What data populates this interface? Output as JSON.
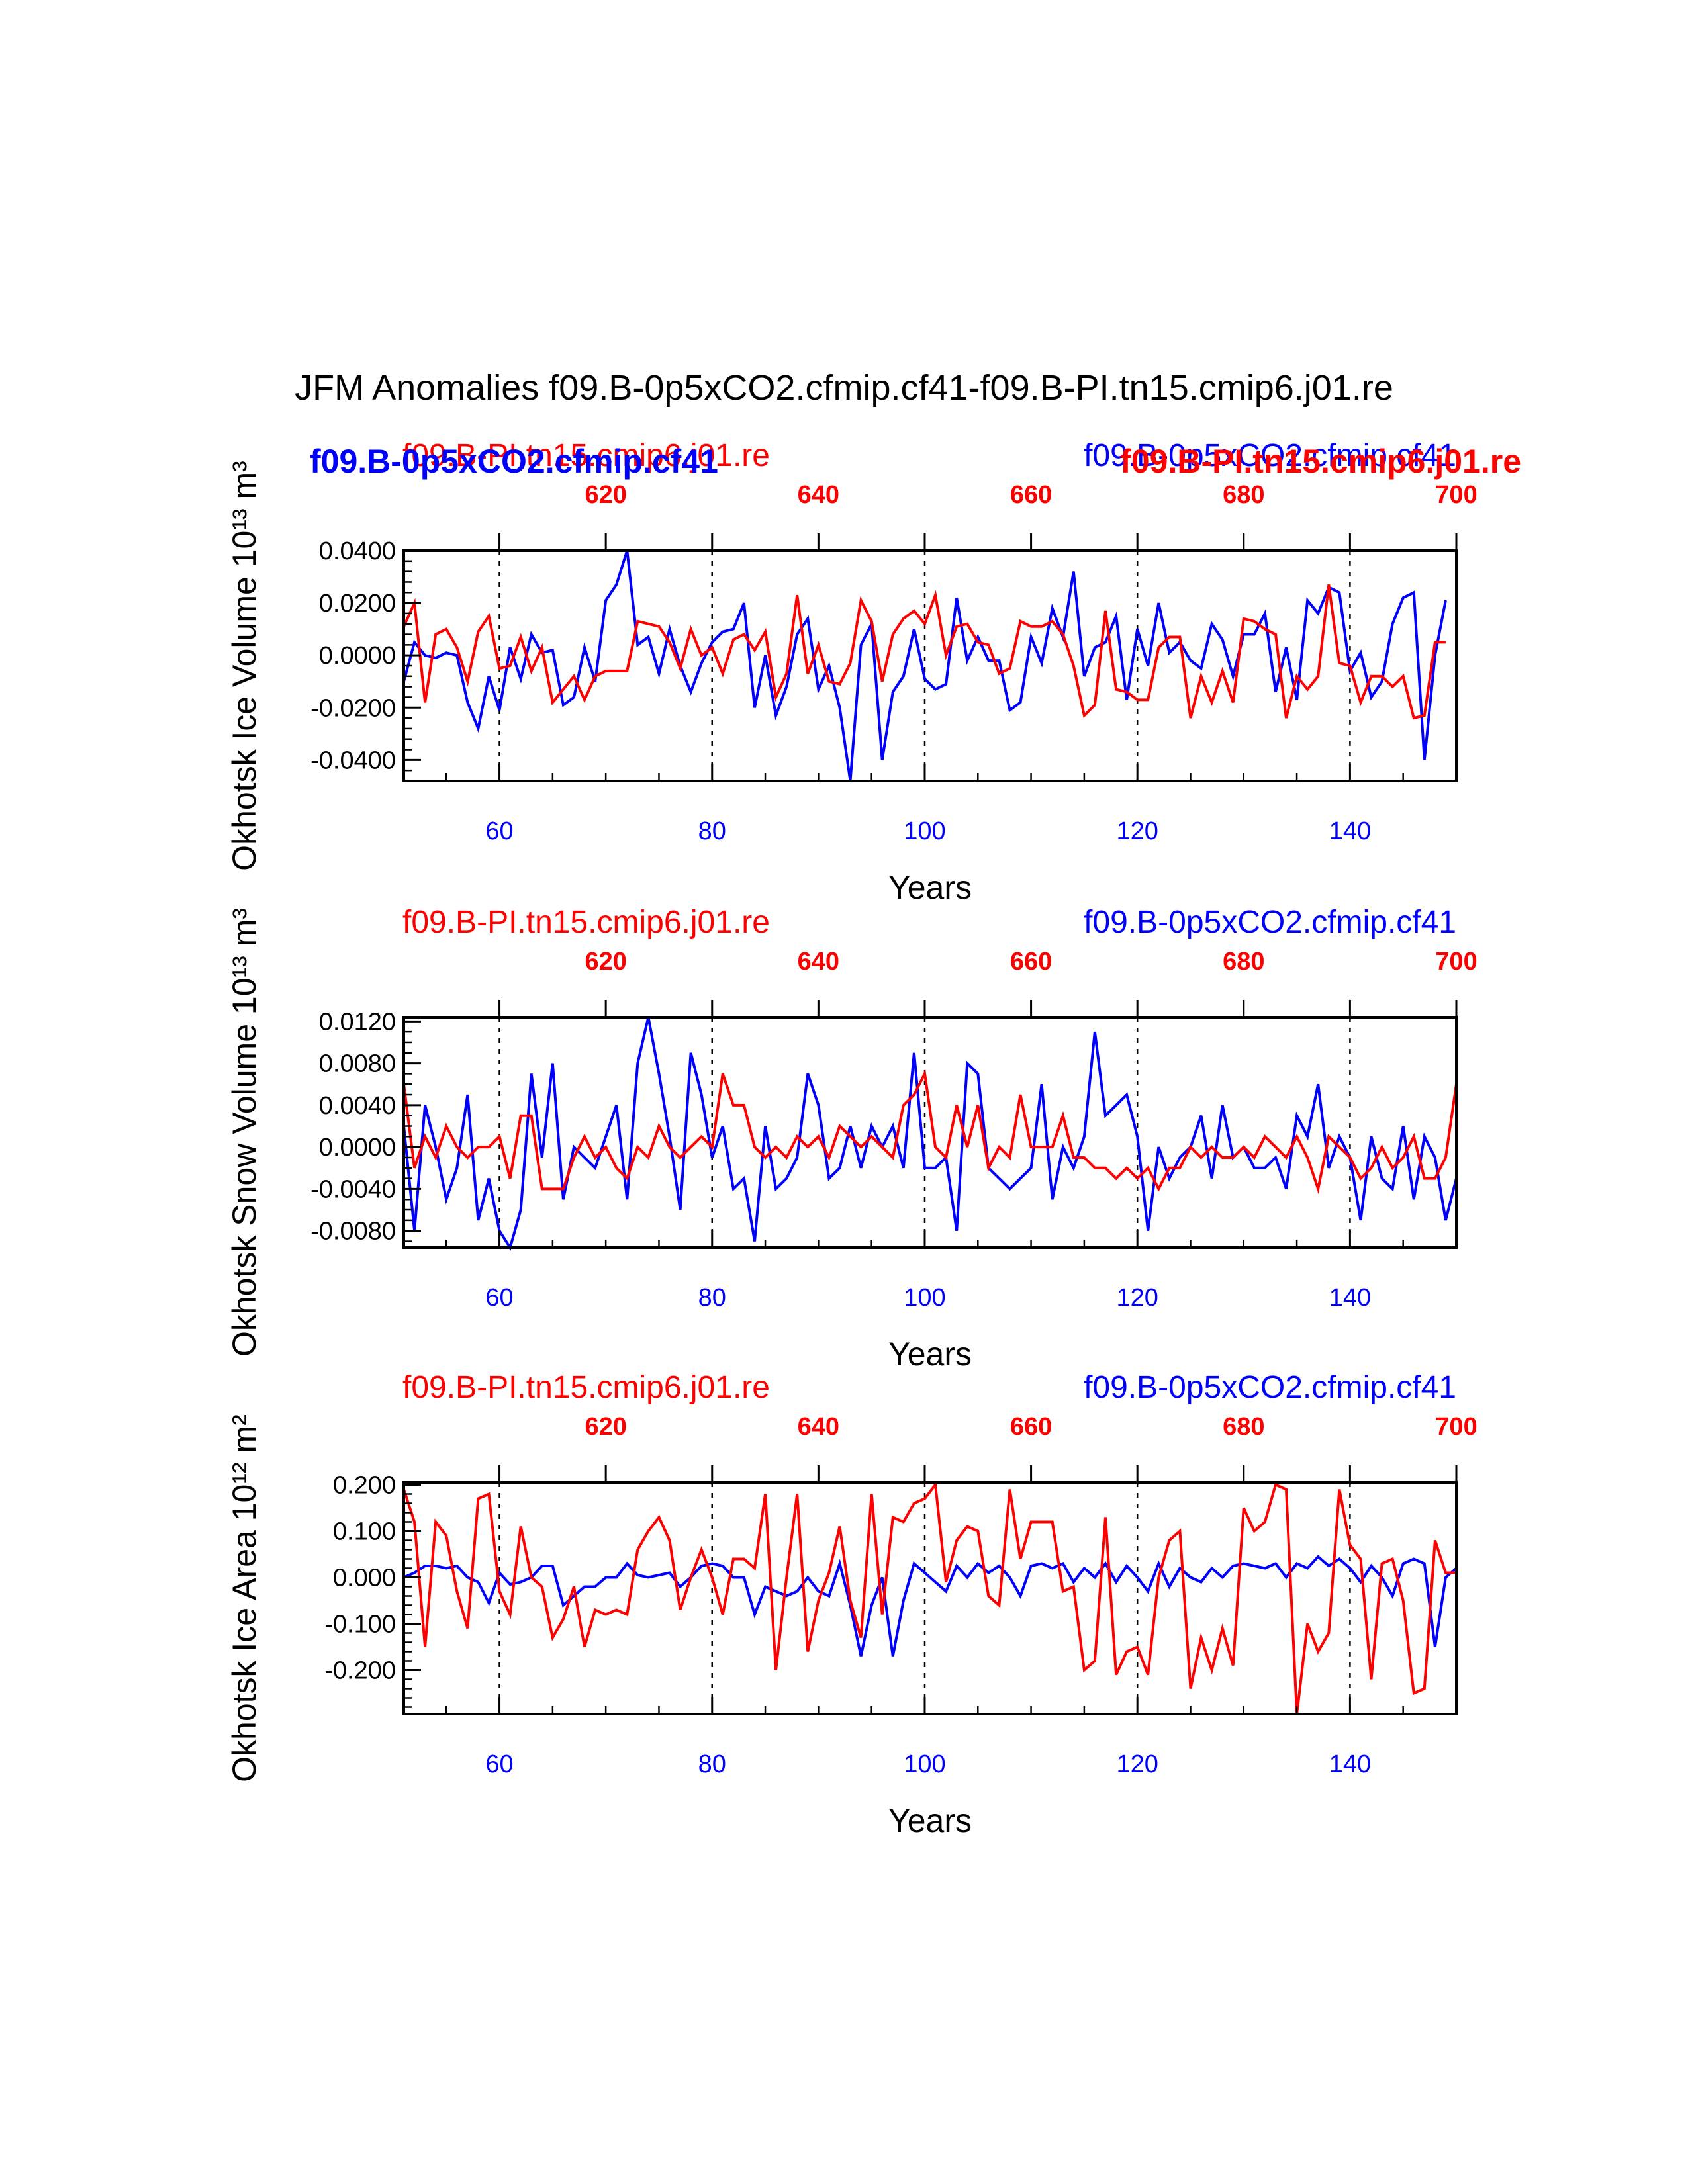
{
  "figure_title": "JFM Anomalies f09.B-0p5xCO2.cfmip.cf41-f09.B-PI.tn15.cmip6.j01.re",
  "colors": {
    "experiment": "#0000ff",
    "control": "#ff0000",
    "axis": "#000000",
    "grid": "#000000"
  },
  "extra_labels": {
    "experiment_bold": "f09.B-0p5xCO2.cfmip.cf41",
    "control_bold": "f09.B-PI.tn15.cmip6.j01.re"
  },
  "chart_data": [
    {
      "type": "line",
      "title_left": "f09.B-PI.tn15.cmip6.j01.re",
      "title_right": "f09.B-0p5xCO2.cfmip.cf41",
      "ylabel": "Okhotsk Ice Volume 10¹³ m³",
      "xlabel": "Years",
      "xlim": [
        51,
        150
      ],
      "ylim": [
        -0.048,
        0.04
      ],
      "yticks": [
        -0.04,
        -0.02,
        0.0,
        0.02,
        0.04
      ],
      "ytick_labels": [
        "-0.0400",
        "-0.0200",
        "0.0000",
        "0.0200",
        "0.0400"
      ],
      "yminor_step": 0.004,
      "xticks": [
        60,
        80,
        100,
        120,
        140
      ],
      "xtick_labels": [
        "60",
        "80",
        "100",
        "120",
        "140"
      ],
      "top_ticks": [
        610,
        620,
        630,
        640,
        650,
        660,
        670,
        680,
        690,
        700
      ],
      "top_tick_labels": [
        "620",
        "640",
        "660",
        "680",
        "700"
      ],
      "top_offset": 550,
      "grid_x": [
        60,
        80,
        100,
        120,
        140
      ],
      "series": [
        {
          "name": "f09.B-0p5xCO2.cfmip.cf41",
          "axis": "bottom",
          "x_start": 51,
          "values": [
            -0.01,
            0.005,
            0.0,
            -0.001,
            0.001,
            0.0,
            -0.018,
            -0.028,
            -0.008,
            -0.021,
            0.003,
            -0.009,
            0.008,
            0.001,
            0.002,
            -0.019,
            -0.016,
            0.003,
            -0.01,
            0.021,
            0.027,
            0.04,
            0.004,
            0.007,
            -0.007,
            0.01,
            -0.004,
            -0.014,
            -0.003,
            0.005,
            0.009,
            0.01,
            0.02,
            -0.02,
            0.0,
            -0.023,
            -0.012,
            0.008,
            0.014,
            -0.013,
            -0.004,
            -0.02,
            -0.048,
            0.004,
            0.012,
            -0.04,
            -0.014,
            -0.008,
            0.01,
            -0.009,
            -0.013,
            -0.011,
            0.022,
            -0.002,
            0.007,
            -0.002,
            -0.002,
            -0.021,
            -0.018,
            0.007,
            -0.003,
            0.018,
            0.007,
            0.032,
            -0.008,
            0.003,
            0.005,
            0.015,
            -0.017,
            0.01,
            -0.004,
            0.02,
            0.001,
            0.005,
            -0.002,
            -0.005,
            0.012,
            0.006,
            -0.008,
            0.008,
            0.008,
            0.016,
            -0.014,
            0.003,
            -0.017,
            0.021,
            0.016,
            0.026,
            0.024,
            -0.006,
            0.001,
            -0.016,
            -0.01,
            0.012,
            0.022,
            0.024,
            -0.04,
            0.0,
            0.021
          ]
        },
        {
          "name": "f09.B-PI.tn15.cmip6.j01.re",
          "axis": "top",
          "x_start": 601,
          "values": [
            0.011,
            0.02,
            -0.018,
            0.008,
            0.01,
            0.003,
            -0.01,
            0.009,
            0.015,
            -0.005,
            -0.004,
            0.007,
            -0.006,
            0.003,
            -0.018,
            -0.013,
            -0.008,
            -0.017,
            -0.008,
            -0.006,
            -0.006,
            -0.006,
            0.013,
            0.012,
            0.011,
            0.005,
            -0.005,
            0.01,
            0.0,
            0.003,
            -0.007,
            0.006,
            0.008,
            0.002,
            0.009,
            -0.016,
            -0.007,
            0.023,
            -0.007,
            0.004,
            -0.01,
            -0.011,
            -0.003,
            0.021,
            0.013,
            -0.01,
            0.008,
            0.014,
            0.017,
            0.012,
            0.023,
            0.0,
            0.011,
            0.012,
            0.005,
            0.004,
            -0.007,
            -0.005,
            0.013,
            0.011,
            0.011,
            0.013,
            0.008,
            -0.004,
            -0.023,
            -0.019,
            0.017,
            -0.013,
            -0.014,
            -0.017,
            -0.017,
            0.003,
            0.007,
            0.007,
            -0.024,
            -0.008,
            -0.018,
            -0.006,
            -0.018,
            0.014,
            0.013,
            0.01,
            0.008,
            -0.024,
            -0.008,
            -0.013,
            -0.008,
            0.027,
            -0.003,
            -0.004,
            -0.018,
            -0.008,
            -0.008,
            -0.012,
            -0.008,
            -0.024,
            -0.023,
            0.005,
            0.005
          ]
        }
      ]
    },
    {
      "type": "line",
      "title_left": "f09.B-PI.tn15.cmip6.j01.re",
      "title_right": "f09.B-0p5xCO2.cfmip.cf41",
      "ylabel": "Okhotsk Snow Volume 10¹³ m³",
      "xlabel": "Years",
      "xlim": [
        51,
        150
      ],
      "ylim": [
        -0.0096,
        0.0124
      ],
      "yticks": [
        -0.008,
        -0.004,
        0.0,
        0.004,
        0.008,
        0.012
      ],
      "ytick_labels": [
        "-0.0080",
        "-0.0040",
        "0.0000",
        "0.0040",
        "0.0080",
        "0.0120"
      ],
      "yminor_step": 0.001,
      "xticks": [
        60,
        80,
        100,
        120,
        140
      ],
      "xtick_labels": [
        "60",
        "80",
        "100",
        "120",
        "140"
      ],
      "top_ticks": [
        610,
        620,
        630,
        640,
        650,
        660,
        670,
        680,
        690,
        700
      ],
      "top_tick_labels": [
        "620",
        "640",
        "660",
        "680",
        "700"
      ],
      "top_offset": 550,
      "grid_x": [
        60,
        80,
        100,
        120,
        140
      ],
      "series": [
        {
          "name": "f09.B-0p5xCO2.cfmip.cf41",
          "axis": "bottom",
          "x_start": 51,
          "values": [
            0.002,
            -0.008,
            0.004,
            0.0,
            -0.005,
            -0.002,
            0.005,
            -0.007,
            -0.003,
            -0.008,
            -0.0096,
            -0.006,
            0.007,
            -0.001,
            0.008,
            -0.005,
            0.0,
            -0.001,
            -0.002,
            0.001,
            0.004,
            -0.005,
            0.008,
            0.0124,
            0.007,
            0.001,
            -0.006,
            0.009,
            0.005,
            -0.001,
            0.002,
            -0.004,
            -0.003,
            -0.009,
            0.002,
            -0.004,
            -0.003,
            -0.001,
            0.007,
            0.004,
            -0.003,
            -0.002,
            0.002,
            -0.002,
            0.002,
            0.0,
            0.002,
            -0.002,
            0.009,
            -0.002,
            -0.002,
            -0.001,
            -0.008,
            0.008,
            0.007,
            -0.002,
            -0.003,
            -0.004,
            -0.003,
            -0.002,
            0.006,
            -0.005,
            0.0,
            -0.002,
            0.001,
            0.011,
            0.003,
            0.004,
            0.005,
            0.001,
            -0.008,
            0.0,
            -0.003,
            -0.001,
            0.0,
            0.003,
            -0.003,
            0.004,
            -0.001,
            0.0,
            -0.002,
            -0.002,
            -0.001,
            -0.004,
            0.003,
            0.001,
            0.006,
            -0.002,
            0.001,
            -0.001,
            -0.007,
            0.001,
            -0.003,
            -0.004,
            0.002,
            -0.005,
            0.001,
            -0.001,
            -0.007,
            -0.003
          ]
        },
        {
          "name": "f09.B-PI.tn15.cmip6.j01.re",
          "axis": "top",
          "x_start": 601,
          "values": [
            0.006,
            -0.002,
            0.001,
            -0.001,
            0.002,
            0.0,
            -0.001,
            0.0,
            0.0,
            0.001,
            -0.003,
            0.003,
            0.003,
            -0.004,
            -0.004,
            -0.004,
            -0.001,
            0.001,
            -0.001,
            0.0,
            -0.002,
            -0.003,
            0.0,
            -0.001,
            0.002,
            0.0,
            -0.001,
            0.0,
            0.001,
            0.0,
            0.007,
            0.004,
            0.004,
            0.0,
            -0.001,
            0.0,
            -0.001,
            0.001,
            0.0,
            0.001,
            -0.001,
            0.002,
            0.001,
            0.0,
            0.001,
            0.0,
            -0.001,
            0.004,
            0.005,
            0.007,
            0.0,
            -0.001,
            0.004,
            0.0,
            0.004,
            -0.002,
            0.0,
            -0.001,
            0.005,
            0.0,
            0.0,
            0.0,
            0.003,
            -0.001,
            -0.001,
            -0.002,
            -0.002,
            -0.003,
            -0.002,
            -0.003,
            -0.002,
            -0.004,
            -0.002,
            -0.002,
            0.0,
            -0.001,
            0.0,
            -0.001,
            -0.001,
            0.0,
            -0.001,
            0.001,
            0.0,
            -0.001,
            0.001,
            -0.001,
            -0.004,
            0.001,
            0.0,
            -0.001,
            -0.003,
            -0.002,
            0.0,
            -0.002,
            -0.001,
            0.001,
            -0.003,
            -0.003,
            -0.001,
            0.006
          ]
        }
      ]
    },
    {
      "type": "line",
      "title_left": "f09.B-PI.tn15.cmip6.j01.re",
      "title_right": "f09.B-0p5xCO2.cfmip.cf41",
      "ylabel": "Okhotsk Ice Area 10¹² m²",
      "xlabel": "Years",
      "xlim": [
        51,
        150
      ],
      "ylim": [
        -0.295,
        0.205
      ],
      "yticks": [
        -0.2,
        -0.1,
        0.0,
        0.1,
        0.2
      ],
      "ytick_labels": [
        "-0.200",
        "-0.100",
        "0.000",
        "0.100",
        "0.200"
      ],
      "yminor_step": 0.02,
      "xticks": [
        60,
        80,
        100,
        120,
        140
      ],
      "xtick_labels": [
        "60",
        "80",
        "100",
        "120",
        "140"
      ],
      "top_ticks": [
        610,
        620,
        630,
        640,
        650,
        660,
        670,
        680,
        690,
        700
      ],
      "top_tick_labels": [
        "620",
        "640",
        "660",
        "680",
        "700"
      ],
      "top_offset": 550,
      "grid_x": [
        60,
        80,
        100,
        120,
        140
      ],
      "series": [
        {
          "name": "f09.B-0p5xCO2.cfmip.cf41",
          "axis": "bottom",
          "x_start": 51,
          "values": [
            0.0,
            0.01,
            0.025,
            0.025,
            0.02,
            0.025,
            0.0,
            -0.01,
            -0.055,
            0.01,
            -0.015,
            -0.01,
            0.0,
            0.025,
            0.025,
            -0.06,
            -0.04,
            -0.02,
            -0.02,
            0.0,
            0.0,
            0.03,
            0.005,
            0.0,
            0.005,
            0.01,
            -0.02,
            0.0,
            0.025,
            0.03,
            0.025,
            0.0,
            0.0,
            -0.08,
            -0.02,
            -0.03,
            -0.04,
            -0.03,
            0.0,
            -0.03,
            -0.04,
            0.03,
            -0.06,
            -0.17,
            -0.06,
            0.0,
            -0.17,
            -0.05,
            0.03,
            0.01,
            -0.01,
            -0.03,
            0.025,
            0.0,
            0.03,
            0.01,
            0.025,
            0.0,
            -0.04,
            0.025,
            0.03,
            0.02,
            0.03,
            -0.01,
            0.02,
            0.0,
            0.03,
            -0.01,
            0.025,
            0.0,
            -0.03,
            0.03,
            -0.02,
            0.02,
            0.0,
            -0.01,
            0.02,
            0.0,
            0.025,
            0.03,
            0.025,
            0.02,
            0.03,
            0.0,
            0.03,
            0.02,
            0.045,
            0.025,
            0.04,
            0.02,
            -0.01,
            0.025,
            0.0,
            -0.04,
            0.03,
            0.04,
            0.03,
            -0.15,
            0.0,
            0.02
          ]
        },
        {
          "name": "f09.B-PI.tn15.cmip6.j01.re",
          "axis": "top",
          "x_start": 601,
          "values": [
            0.19,
            0.12,
            -0.15,
            0.12,
            0.09,
            -0.03,
            -0.11,
            0.17,
            0.18,
            -0.03,
            -0.08,
            0.11,
            0.0,
            -0.02,
            -0.13,
            -0.09,
            -0.02,
            -0.15,
            -0.07,
            -0.08,
            -0.07,
            -0.08,
            0.06,
            0.1,
            0.13,
            0.08,
            -0.07,
            0.0,
            0.06,
            0.0,
            -0.08,
            0.04,
            0.04,
            0.02,
            0.18,
            -0.2,
            0.0,
            0.18,
            -0.16,
            -0.05,
            0.01,
            0.11,
            -0.05,
            -0.13,
            0.18,
            -0.08,
            0.13,
            0.12,
            0.16,
            0.17,
            0.2,
            -0.01,
            0.08,
            0.11,
            0.1,
            -0.04,
            -0.06,
            0.19,
            0.04,
            0.12,
            0.12,
            0.12,
            -0.03,
            -0.02,
            -0.2,
            -0.18,
            0.13,
            -0.21,
            -0.16,
            -0.15,
            -0.21,
            0.0,
            0.08,
            0.1,
            -0.24,
            -0.13,
            -0.2,
            -0.11,
            -0.19,
            0.15,
            0.1,
            0.12,
            0.2,
            0.19,
            -0.295,
            -0.1,
            -0.16,
            -0.12,
            0.19,
            0.07,
            0.04,
            -0.22,
            0.03,
            0.04,
            -0.05,
            -0.25,
            -0.24,
            0.08,
            0.01,
            0.01
          ]
        }
      ]
    }
  ]
}
